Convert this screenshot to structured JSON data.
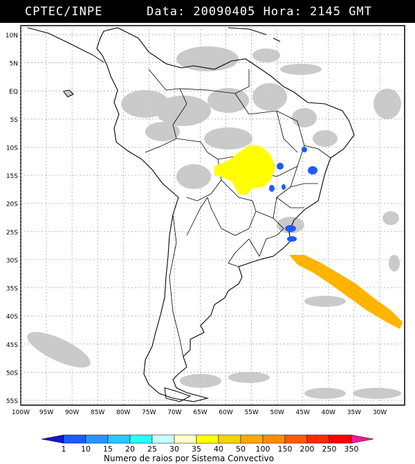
{
  "header": {
    "source": "CPTEC/INPE",
    "date_label": "Data:",
    "date": "20090405",
    "time_label": "Hora:",
    "time": "2145",
    "tz": "GMT"
  },
  "map": {
    "lat_labels": [
      "10N",
      "5N",
      "EQ",
      "5S",
      "10S",
      "15S",
      "20S",
      "25S",
      "30S",
      "35S",
      "40S",
      "45S",
      "50S",
      "55S"
    ],
    "lon_labels": [
      "100W",
      "95W",
      "90W",
      "85W",
      "80W",
      "75W",
      "70W",
      "65W",
      "60W",
      "55W",
      "50W",
      "45W",
      "40W",
      "35W",
      "30W"
    ]
  },
  "colorbar": {
    "labels": [
      "1",
      "10",
      "15",
      "20",
      "25",
      "30",
      "35",
      "40",
      "50",
      "100",
      "150",
      "200",
      "250",
      "350"
    ],
    "colors": [
      "#1414d2",
      "#1e5aff",
      "#2896ff",
      "#28c8ff",
      "#28ffff",
      "#c8ffff",
      "#ffffc8",
      "#ffff00",
      "#ffd200",
      "#ffaa00",
      "#ff8c00",
      "#ff5a00",
      "#ff2a00",
      "#ff0000",
      "#ff14a0"
    ],
    "title": "Numero de raios por Sistema Convectivo"
  },
  "colors": {
    "background": "#ffffff",
    "header_bg": "#000000",
    "cloud_gray": "#bebebe",
    "storm_yellow": "#ffff00",
    "storm_orange": "#ffb400",
    "storm_blue": "#1e5aff"
  }
}
